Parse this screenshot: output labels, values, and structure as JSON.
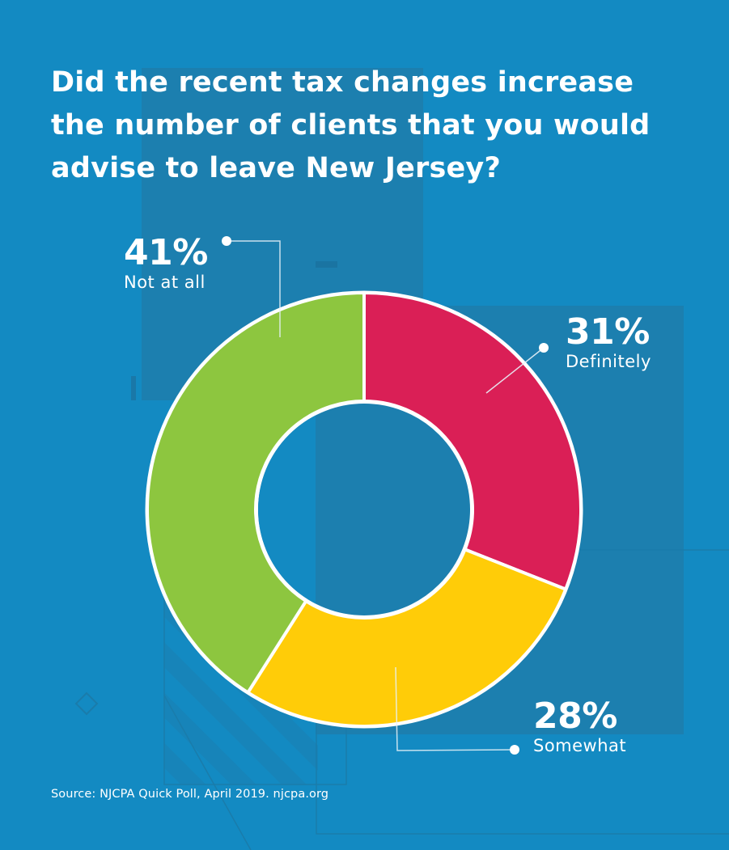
{
  "colors": {
    "background": "#138AC2",
    "panel": "#1C7FAF",
    "decor_line": "#1A7CAB",
    "separator": "#FFFFFF",
    "text": "#FFFFFF"
  },
  "title": "Did the recent tax changes increase the number of clients that you would advise to leave New Jersey?",
  "title_lines": [
    "Did the recent tax changes increase",
    "the number of clients that you would",
    "advise to leave New Jersey?"
  ],
  "source": "Source: NJCPA Quick Poll, April 2019. njcpa.org",
  "chart_data": {
    "type": "pie",
    "variant": "donut",
    "title": "Did the recent tax changes increase the number of clients that you would advise to leave New Jersey?",
    "unit": "%",
    "start": "top",
    "direction": "clockwise",
    "categories": [
      "Definitely",
      "Somewhat",
      "Not at all"
    ],
    "values": [
      31,
      28,
      41
    ],
    "labels": [
      "31%",
      "28%",
      "41%"
    ],
    "colors": [
      "#DA1F56",
      "#FFCC08",
      "#8DC63F"
    ],
    "legend": "none (direct labels with leader lines)",
    "annotations": [
      {
        "category": "Definitely",
        "pct": "31%",
        "name": "Definitely",
        "position": "top-right"
      },
      {
        "category": "Somewhat",
        "pct": "28%",
        "name": "Somewhat",
        "position": "bottom-right"
      },
      {
        "category": "Not at all",
        "pct": "41%",
        "name": "Not at all",
        "position": "top-left"
      }
    ]
  }
}
